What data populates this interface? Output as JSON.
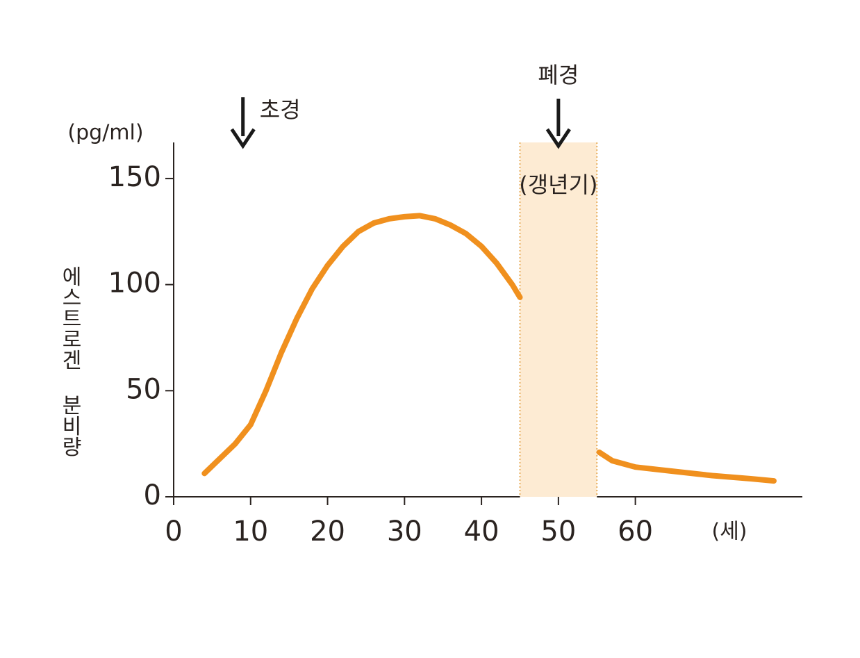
{
  "chart_data": {
    "type": "line",
    "y_label": "에스트로겐 분비량",
    "y_unit": "(pg/ml)",
    "x_unit": "(세)",
    "x": [
      4,
      6,
      8,
      10,
      12,
      14,
      16,
      18,
      20,
      22,
      24,
      26,
      28,
      30,
      32,
      34,
      36,
      38,
      40,
      42,
      44,
      45,
      50,
      55.3,
      57,
      60,
      65,
      70,
      75,
      78
    ],
    "values": [
      11,
      18,
      25,
      34,
      50,
      68,
      84,
      98,
      109,
      118,
      125,
      129,
      131,
      132,
      132.5,
      131,
      128,
      124,
      118,
      110,
      100,
      94,
      null,
      21,
      17,
      14,
      12,
      10,
      8.5,
      7.5
    ],
    "color": "#f0901e",
    "xlim": [
      0,
      81.7
    ],
    "ylim": [
      0,
      167
    ],
    "xticks": [
      0,
      10,
      20,
      30,
      40,
      50,
      60
    ],
    "yticks": [
      0,
      50,
      100,
      150
    ],
    "band": {
      "x": [
        45,
        55
      ],
      "label": "(갱년기)",
      "color": "#fdebd3"
    },
    "annotations": [
      {
        "text": "초경",
        "x": 9
      },
      {
        "text": "폐경",
        "x": 50
      }
    ]
  }
}
